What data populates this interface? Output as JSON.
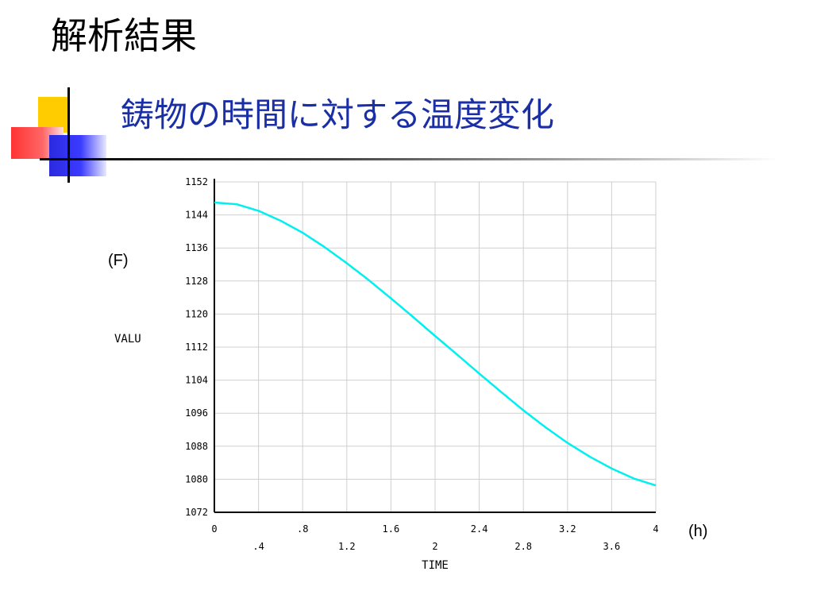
{
  "section_title": "解析結果",
  "slide_title": "鋳物の時間に対する温度変化",
  "colors": {
    "title_blue": "#1a2fa6",
    "curve": "#00f0f0",
    "grid": "#cfcfcf",
    "deco_yellow": "#ffcc00",
    "deco_red": "#ff3333",
    "deco_blue": "#2a2ae0"
  },
  "chart_data": {
    "type": "line",
    "xlabel": "TIME",
    "ylabel": "VALU",
    "x_unit": "(h)",
    "y_unit": "(F)",
    "xlim": [
      0,
      4
    ],
    "ylim": [
      1072,
      1152
    ],
    "x_ticks_upper": [
      "0",
      ".8",
      "1.6",
      "2.4",
      "3.2",
      "4"
    ],
    "x_ticks_upper_values": [
      0,
      0.8,
      1.6,
      2.4,
      3.2,
      4
    ],
    "x_ticks_lower": [
      ".4",
      "1.2",
      "2",
      "2.8",
      "3.6"
    ],
    "x_ticks_lower_values": [
      0.4,
      1.2,
      2.0,
      2.8,
      3.6
    ],
    "y_ticks": [
      "1072",
      "1080",
      "1088",
      "1096",
      "1104",
      "1112",
      "1120",
      "1128",
      "1136",
      "1144",
      "1152"
    ],
    "y_tick_values": [
      1072,
      1080,
      1088,
      1096,
      1104,
      1112,
      1120,
      1128,
      1136,
      1144,
      1152
    ],
    "grid": true,
    "series": [
      {
        "x": [
          0,
          0.2,
          0.4,
          0.6,
          0.8,
          1.0,
          1.2,
          1.4,
          1.6,
          1.8,
          2.0,
          2.2,
          2.4,
          2.6,
          2.8,
          3.0,
          3.2,
          3.4,
          3.6,
          3.8,
          4.0
        ],
        "y": [
          1147,
          1146.6,
          1145,
          1142.6,
          1139.7,
          1136.2,
          1132.3,
          1128.2,
          1123.8,
          1119.3,
          1114.7,
          1110.2,
          1105.6,
          1101.1,
          1096.7,
          1092.6,
          1088.8,
          1085.5,
          1082.6,
          1080.2,
          1078.5
        ]
      }
    ]
  }
}
